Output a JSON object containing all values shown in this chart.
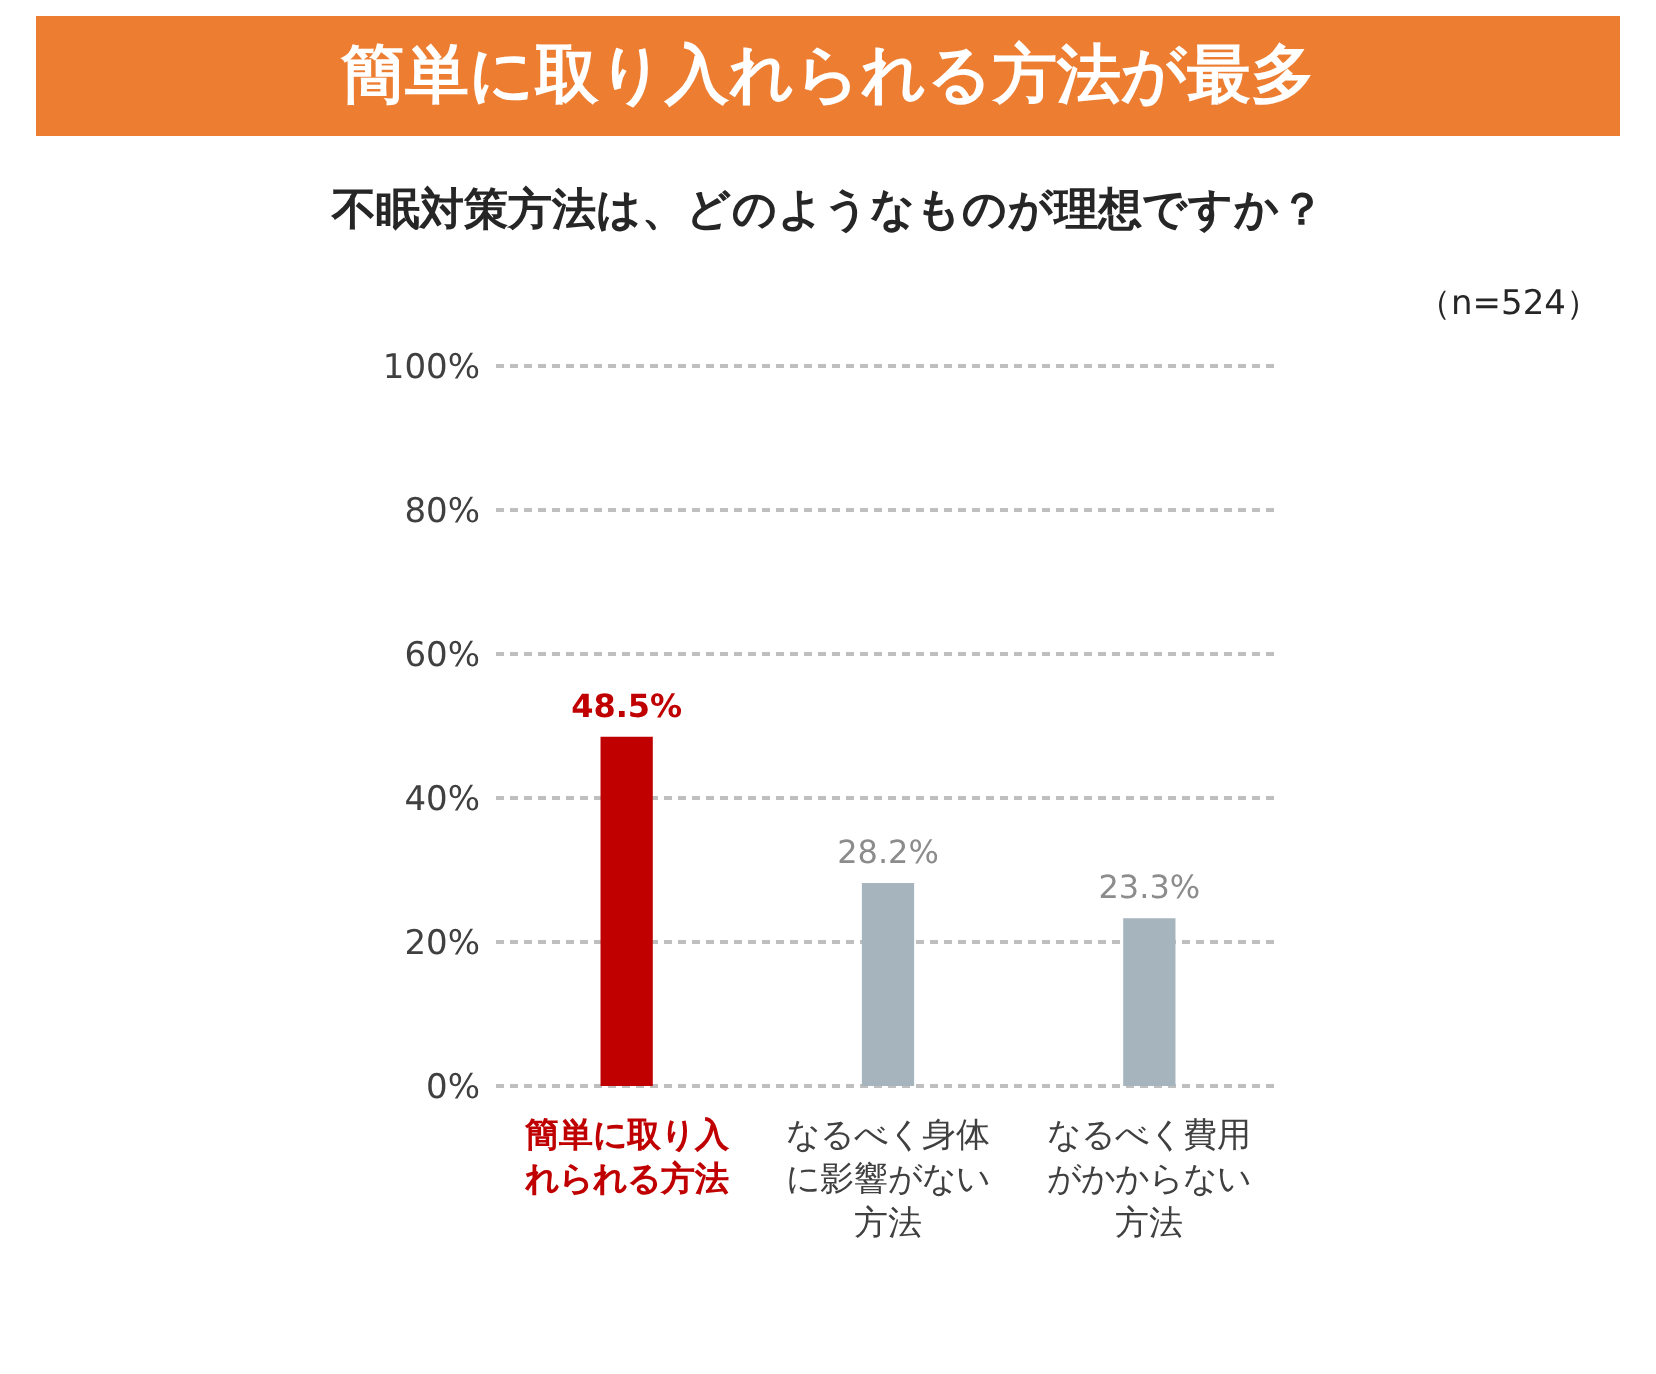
{
  "chart_data": {
    "type": "bar",
    "title": "簡単に取り入れられる方法が最多",
    "subtitle": "不眠対策方法は、どのようなものが理想ですか？",
    "annotations": [
      "（n=524）"
    ],
    "categories": [
      "簡単に取り入れられる方法",
      "なるべく身体に影響がない方法",
      "なるべく費用がかからない方法"
    ],
    "values": [
      48.5,
      28.2,
      23.3
    ],
    "colors": [
      "#c00000",
      "#a5b4bd",
      "#a5b4bd"
    ],
    "value_labels": [
      "48.5%",
      "28.2%",
      "23.3%"
    ],
    "ylim": [
      0,
      100
    ],
    "yticks": [
      {
        "value": 0,
        "label": "0%"
      },
      {
        "value": 20,
        "label": "20%"
      },
      {
        "value": 40,
        "label": "40%"
      },
      {
        "value": 60,
        "label": "60%"
      },
      {
        "value": 80,
        "label": "80%"
      },
      {
        "value": 100,
        "label": "100%"
      }
    ],
    "grid": "y",
    "legend": false
  }
}
